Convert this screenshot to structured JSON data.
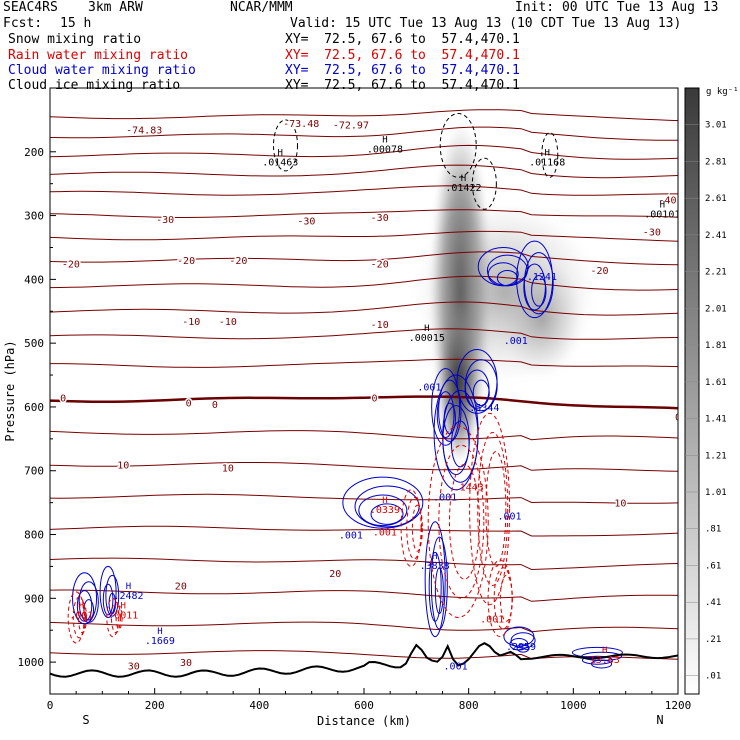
{
  "header": {
    "project": "SEAC4RS",
    "model": "3km ARW",
    "center": "NCAR/MMM",
    "init": "Init: 00 UTC Tue 13 Aug 13",
    "fcst_label": "Fcst:",
    "fcst_value": "15 h",
    "valid": "Valid: 15 UTC Tue 13 Aug 13 (10 CDT Tue 13 Aug 13)"
  },
  "legend": [
    {
      "name": "Snow mixing ratio",
      "xy": "XY=  72.5, 67.6 to  57.4,470.1",
      "color": "#000000"
    },
    {
      "name": "Rain water mixing ratio",
      "xy": "XY=  72.5, 67.6 to  57.4,470.1",
      "color": "#dd0000"
    },
    {
      "name": "Cloud water mixing ratio",
      "xy": "XY=  72.5, 67.6 to  57.4,470.1",
      "color": "#0000cc"
    },
    {
      "name": "Cloud ice mixing ratio",
      "xy": "XY=  72.5, 67.6 to  57.4,470.1",
      "color": "#000000"
    }
  ],
  "chart_data": {
    "type": "cross-section",
    "xlabel": "Distance (km)",
    "ylabel": "Pressure (hPa)",
    "xlim": [
      0,
      1200
    ],
    "ylim": [
      1050,
      100
    ],
    "x_ticks": [
      "0",
      "200",
      "400",
      "600",
      "800",
      "1000",
      "1200"
    ],
    "y_ticks": [
      "200",
      "300",
      "400",
      "500",
      "600",
      "700",
      "800",
      "900",
      "1000"
    ],
    "x_endpoints": [
      "S",
      "N"
    ],
    "colorbar": {
      "unit": "g kg⁻¹",
      "levels": [
        "3.01",
        "2.81",
        "2.61",
        "2.41",
        "2.21",
        "2.01",
        "1.81",
        "1.61",
        "1.41",
        "1.21",
        "1.01",
        ".81",
        ".61",
        ".41",
        ".21",
        ".01"
      ]
    },
    "temperature_labels": [
      {
        "text": "-74.83",
        "x": 180,
        "p": 165
      },
      {
        "text": "-73.48",
        "x": 480,
        "p": 155
      },
      {
        "text": "-72.97",
        "x": 575,
        "p": 157
      },
      {
        "text": "-40",
        "x": 1180,
        "p": 275
      },
      {
        "text": "-30",
        "x": 220,
        "p": 305
      },
      {
        "text": "-30",
        "x": 490,
        "p": 308
      },
      {
        "text": "-30",
        "x": 630,
        "p": 302
      },
      {
        "text": "-30",
        "x": 1150,
        "p": 325
      },
      {
        "text": "-20",
        "x": 40,
        "p": 375
      },
      {
        "text": "-20",
        "x": 260,
        "p": 370
      },
      {
        "text": "-20",
        "x": 360,
        "p": 370
      },
      {
        "text": "-20",
        "x": 630,
        "p": 375
      },
      {
        "text": "-20",
        "x": 1050,
        "p": 385
      },
      {
        "text": "-10",
        "x": 270,
        "p": 465
      },
      {
        "text": "-10",
        "x": 340,
        "p": 465
      },
      {
        "text": "-10",
        "x": 630,
        "p": 470
      },
      {
        "text": "0",
        "x": 25,
        "p": 585
      },
      {
        "text": "0",
        "x": 265,
        "p": 593
      },
      {
        "text": "0",
        "x": 315,
        "p": 595
      },
      {
        "text": "0",
        "x": 620,
        "p": 585
      },
      {
        "text": "0",
        "x": 1200,
        "p": 615
      },
      {
        "text": "10",
        "x": 140,
        "p": 690
      },
      {
        "text": "10",
        "x": 340,
        "p": 695
      },
      {
        "text": "10",
        "x": 1090,
        "p": 750
      },
      {
        "text": "20",
        "x": 250,
        "p": 880
      },
      {
        "text": "20",
        "x": 545,
        "p": 860
      },
      {
        "text": "30",
        "x": 160,
        "p": 1005
      },
      {
        "text": "30",
        "x": 260,
        "p": 1000
      }
    ],
    "point_labels": [
      {
        "text": ".01463",
        "x": 440,
        "p": 215,
        "color": "#000000",
        "h": true
      },
      {
        "text": ".00078",
        "x": 640,
        "p": 195,
        "color": "#000000",
        "h": true
      },
      {
        "text": ".01422",
        "x": 790,
        "p": 255,
        "color": "#000000",
        "h": true
      },
      {
        "text": ".01168",
        "x": 950,
        "p": 215,
        "color": "#000000",
        "h": true
      },
      {
        "text": ".00101",
        "x": 1170,
        "p": 297,
        "color": "#000000",
        "h": true
      },
      {
        "text": ".00015",
        "x": 720,
        "p": 490,
        "color": "#000000",
        "h": true
      },
      {
        "text": ".1241",
        "x": 940,
        "p": 395,
        "color": "#0000cc",
        "h": false
      },
      {
        "text": ".001",
        "x": 890,
        "p": 495,
        "color": "#0000cc",
        "h": false
      },
      {
        "text": ".001",
        "x": 725,
        "p": 568,
        "color": "#0000cc",
        "h": false
      },
      {
        "text": ".5344",
        "x": 830,
        "p": 600,
        "color": "#0000cc",
        "h": false
      },
      {
        "text": ".001",
        "x": 755,
        "p": 740,
        "color": "#0000cc",
        "h": false
      },
      {
        "text": ".1443",
        "x": 800,
        "p": 725,
        "color": "#dd0000",
        "h": false
      },
      {
        "text": ".001",
        "x": 878,
        "p": 770,
        "color": "#0000cc",
        "h": false
      },
      {
        "text": ".0339",
        "x": 640,
        "p": 760,
        "color": "#dd0000",
        "h": true
      },
      {
        "text": ".001",
        "x": 640,
        "p": 795,
        "color": "#dd0000",
        "h": false
      },
      {
        "text": ".001",
        "x": 575,
        "p": 800,
        "color": "#0000cc",
        "h": false
      },
      {
        "text": ".3838",
        "x": 735,
        "p": 848,
        "color": "#0000cc",
        "h": true
      },
      {
        "text": ".001",
        "x": 845,
        "p": 932,
        "color": "#dd0000",
        "h": false
      },
      {
        "text": ".2959",
        "x": 900,
        "p": 975,
        "color": "#0000cc",
        "h": false
      },
      {
        "text": ".001",
        "x": 775,
        "p": 1005,
        "color": "#0000cc",
        "h": false
      },
      {
        "text": "13.63",
        "x": 1060,
        "p": 995,
        "color": "#dd0000",
        "h": true
      },
      {
        "text": ".2482",
        "x": 150,
        "p": 895,
        "color": "#0000cc",
        "h": true
      },
      {
        "text": ".001",
        "x": 60,
        "p": 925,
        "color": "#dd0000",
        "h": true
      },
      {
        "text": ".0011",
        "x": 140,
        "p": 925,
        "color": "#dd0000",
        "h": true
      },
      {
        "text": ".1669",
        "x": 210,
        "p": 965,
        "color": "#0000cc",
        "h": true
      }
    ]
  }
}
